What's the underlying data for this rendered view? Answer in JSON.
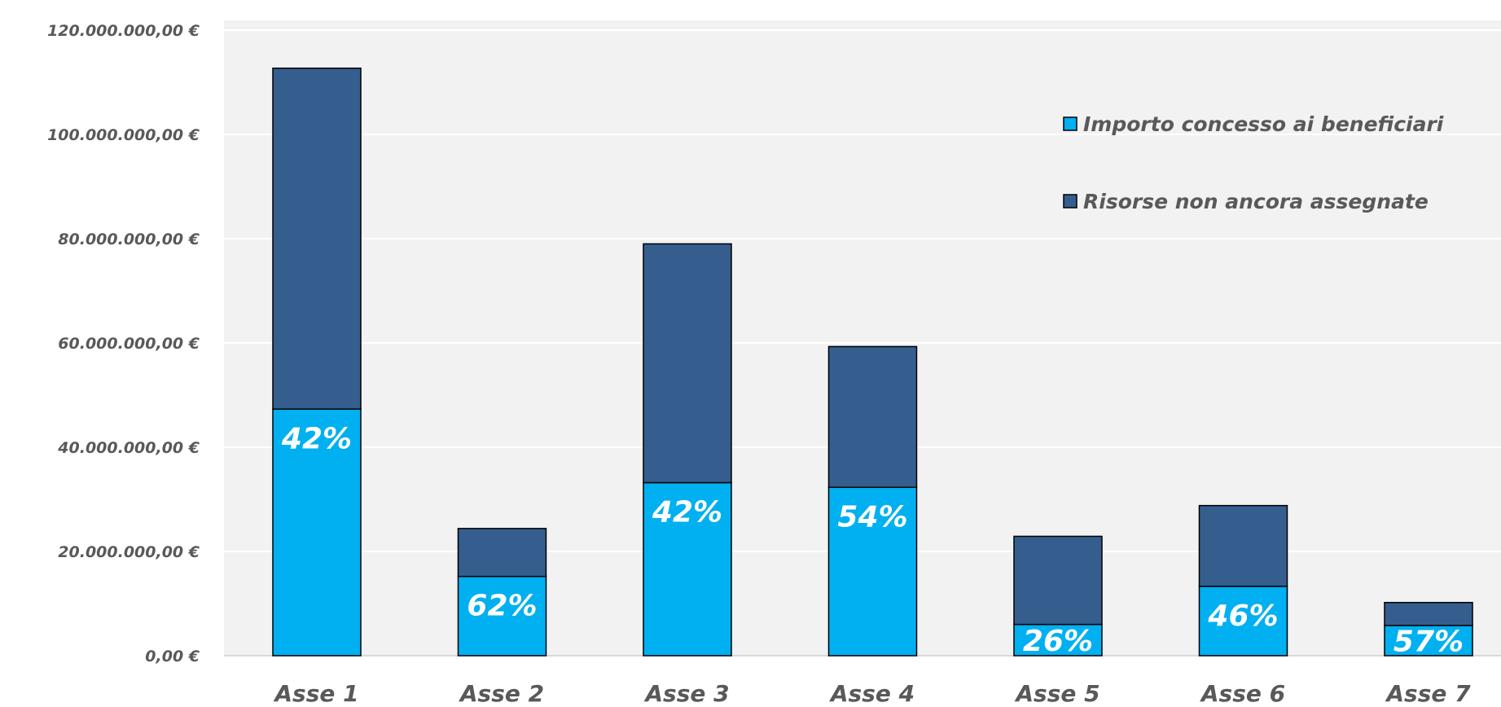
{
  "colors": {
    "assigned": "#00B0F0",
    "remaining": "#355E8F",
    "plot_bg": "#F2F2F2",
    "gridline": "#FFFFFF",
    "text": "#595959"
  },
  "chart_data": {
    "type": "bar",
    "stacked": true,
    "categories": [
      "Asse 1",
      "Asse 2",
      "Asse 3",
      "Asse 4",
      "Asse 5",
      "Asse 6",
      "Asse 7"
    ],
    "series": [
      {
        "name": "Importo concesso ai beneficiari",
        "color": "#00B0F0",
        "values": [
          47300000,
          15200000,
          33200000,
          32300000,
          6000000,
          13300000,
          5800000
        ]
      },
      {
        "name": "Risorse non ancora assegnate",
        "color": "#355E8F",
        "values": [
          65400000,
          9200000,
          45800000,
          27000000,
          16900000,
          15500000,
          4400000
        ]
      }
    ],
    "data_labels": [
      "42%",
      "62%",
      "42%",
      "54%",
      "26%",
      "46%",
      "57%"
    ],
    "ylim": [
      0,
      120000000
    ],
    "yticks": [
      0,
      20000000,
      40000000,
      60000000,
      80000000,
      100000000,
      120000000
    ],
    "ytick_labels": [
      "0,00 €",
      "20.000.000,00 €",
      "40.000.000,00 €",
      "60.000.000,00 €",
      "80.000.000,00 €",
      "100.000.000,00 €",
      "120.000.000,00 €"
    ],
    "grid": true,
    "legend_position": "top-right"
  }
}
